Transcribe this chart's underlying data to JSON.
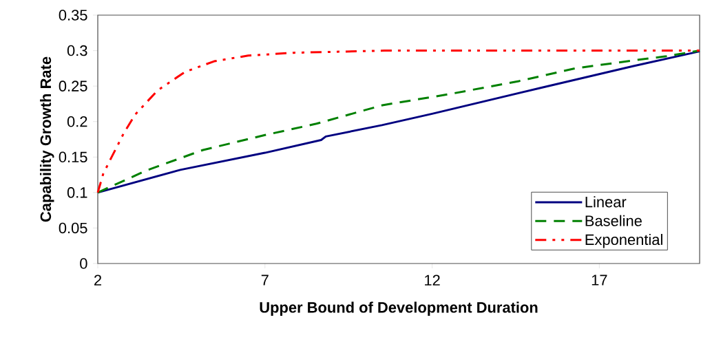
{
  "chart_data": {
    "type": "line",
    "xlabel": "Upper Bound of Development Duration",
    "ylabel": "Capability Growth Rate",
    "xlim": [
      2,
      20
    ],
    "xticks": [
      2,
      7,
      12,
      17
    ],
    "ylim": [
      0,
      0.35
    ],
    "yticks": [
      0,
      0.05,
      0.1,
      0.15,
      0.2,
      0.25,
      0.3,
      0.35
    ],
    "legend": "bottom right",
    "grid": false,
    "series": [
      {
        "name": "Linear",
        "color": "#000080",
        "line_style": "solid",
        "x": [
          2,
          4.47,
          7,
          8.68,
          8.82,
          10.5,
          12,
          15.2,
          18,
          20
        ],
        "values": [
          0.1,
          0.132,
          0.156,
          0.174,
          0.179,
          0.195,
          0.211,
          0.247,
          0.278,
          0.299
        ]
      },
      {
        "name": "Baseline",
        "color": "#008000",
        "line_style": "dashed",
        "x": [
          2,
          3.45,
          5.15,
          7,
          8.54,
          10.51,
          12.55,
          14.59,
          16.28,
          17.99,
          19,
          20
        ],
        "values": [
          0.1,
          0.131,
          0.16,
          0.181,
          0.197,
          0.223,
          0.239,
          0.257,
          0.275,
          0.286,
          0.292,
          0.3
        ]
      },
      {
        "name": "Exponential",
        "color": "#ff0000",
        "line_style": "dashdotdot",
        "x": [
          2,
          2.16,
          2.37,
          2.61,
          2.77,
          3.12,
          3.79,
          4.61,
          5.48,
          6.5,
          7.87,
          10.57,
          20
        ],
        "values": [
          0.1,
          0.126,
          0.146,
          0.168,
          0.183,
          0.21,
          0.244,
          0.27,
          0.285,
          0.293,
          0.297,
          0.3,
          0.3
        ]
      }
    ]
  }
}
